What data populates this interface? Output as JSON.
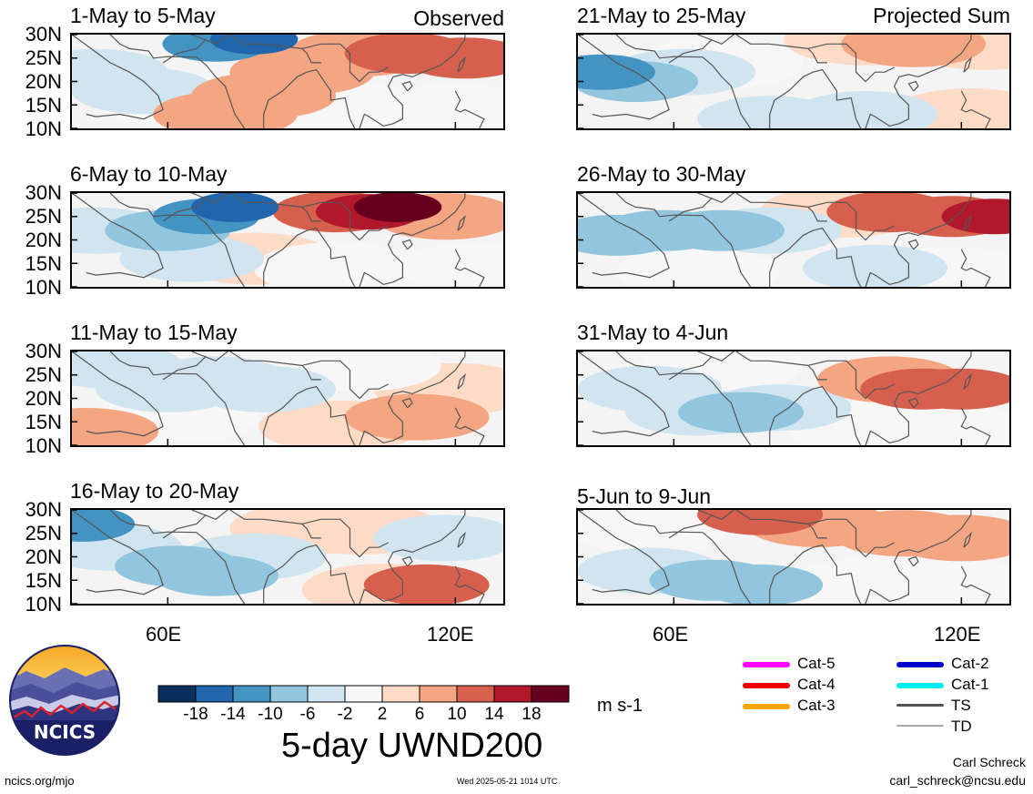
{
  "header": {
    "observed_label": "Observed",
    "projected_label": "Projected Sum"
  },
  "panels": [
    {
      "title": "1-May to 5-May",
      "period": "observed",
      "zones": [
        {
          "lon": 45,
          "lat": 22,
          "val": -6
        },
        {
          "lon": 55,
          "lat": 18,
          "val": -6
        },
        {
          "lon": 62,
          "lat": 16,
          "val": -2
        },
        {
          "lon": 70,
          "lat": 28,
          "val": -14
        },
        {
          "lon": 78,
          "lat": 29,
          "val": -18
        },
        {
          "lon": 72,
          "lat": 13,
          "val": 6
        },
        {
          "lon": 80,
          "lat": 17,
          "val": 6
        },
        {
          "lon": 88,
          "lat": 22,
          "val": 6
        },
        {
          "lon": 100,
          "lat": 26,
          "val": 6
        },
        {
          "lon": 110,
          "lat": 26,
          "val": 10
        },
        {
          "lon": 122,
          "lat": 25,
          "val": 10
        },
        {
          "lon": 100,
          "lat": 14,
          "val": -2
        },
        {
          "lon": 120,
          "lat": 14,
          "val": -2
        },
        {
          "lon": 92,
          "lat": 12,
          "val": -2
        }
      ]
    },
    {
      "title": "21-May to 25-May",
      "period": "projected",
      "zones": [
        {
          "lon": 45,
          "lat": 22,
          "val": -14
        },
        {
          "lon": 52,
          "lat": 20,
          "val": -10
        },
        {
          "lon": 62,
          "lat": 22,
          "val": -6
        },
        {
          "lon": 70,
          "lat": 24,
          "val": -2
        },
        {
          "lon": 80,
          "lat": 12,
          "val": -6
        },
        {
          "lon": 100,
          "lat": 13,
          "val": -6
        },
        {
          "lon": 110,
          "lat": 28,
          "val": 6
        },
        {
          "lon": 100,
          "lat": 29,
          "val": 2
        },
        {
          "lon": 125,
          "lat": 28,
          "val": 2
        },
        {
          "lon": 122,
          "lat": 13,
          "val": 2
        }
      ]
    },
    {
      "title": "6-May to 10-May",
      "period": "observed",
      "zones": [
        {
          "lon": 45,
          "lat": 22,
          "val": -6
        },
        {
          "lon": 60,
          "lat": 22,
          "val": -10
        },
        {
          "lon": 68,
          "lat": 25,
          "val": -14
        },
        {
          "lon": 74,
          "lat": 27,
          "val": -18
        },
        {
          "lon": 65,
          "lat": 16,
          "val": -6
        },
        {
          "lon": 78,
          "lat": 16,
          "val": 2
        },
        {
          "lon": 95,
          "lat": 26,
          "val": 10
        },
        {
          "lon": 102,
          "lat": 26,
          "val": 14
        },
        {
          "lon": 108,
          "lat": 27,
          "val": 18
        },
        {
          "lon": 118,
          "lat": 25,
          "val": 6
        },
        {
          "lon": 95,
          "lat": 14,
          "val": -2
        },
        {
          "lon": 125,
          "lat": 14,
          "val": -2
        }
      ]
    },
    {
      "title": "26-May to 30-May",
      "period": "projected",
      "zones": [
        {
          "lon": 48,
          "lat": 21,
          "val": -10
        },
        {
          "lon": 58,
          "lat": 22,
          "val": -10
        },
        {
          "lon": 70,
          "lat": 22,
          "val": -10
        },
        {
          "lon": 80,
          "lat": 22,
          "val": -6
        },
        {
          "lon": 65,
          "lat": 13,
          "val": -2
        },
        {
          "lon": 105,
          "lat": 26,
          "val": 10
        },
        {
          "lon": 118,
          "lat": 25,
          "val": 10
        },
        {
          "lon": 127,
          "lat": 25,
          "val": 14
        },
        {
          "lon": 95,
          "lat": 26,
          "val": 2
        },
        {
          "lon": 102,
          "lat": 14,
          "val": -6
        },
        {
          "lon": 118,
          "lat": 13,
          "val": -2
        }
      ]
    },
    {
      "title": "11-May to 15-May",
      "period": "observed",
      "zones": [
        {
          "lon": 48,
          "lat": 27,
          "val": -6
        },
        {
          "lon": 60,
          "lat": 22,
          "val": -6
        },
        {
          "lon": 70,
          "lat": 24,
          "val": -6
        },
        {
          "lon": 80,
          "lat": 22,
          "val": -6
        },
        {
          "lon": 62,
          "lat": 16,
          "val": -2
        },
        {
          "lon": 43,
          "lat": 13,
          "val": 6
        },
        {
          "lon": 96,
          "lat": 14,
          "val": 2
        },
        {
          "lon": 112,
          "lat": 16,
          "val": 6
        },
        {
          "lon": 120,
          "lat": 22,
          "val": 2
        },
        {
          "lon": 100,
          "lat": 27,
          "val": -2
        }
      ]
    },
    {
      "title": "31-May to 4-Jun",
      "period": "projected",
      "zones": [
        {
          "lon": 55,
          "lat": 22,
          "val": -6
        },
        {
          "lon": 65,
          "lat": 17,
          "val": -6
        },
        {
          "lon": 74,
          "lat": 17,
          "val": -10
        },
        {
          "lon": 82,
          "lat": 18,
          "val": -6
        },
        {
          "lon": 70,
          "lat": 27,
          "val": -2
        },
        {
          "lon": 112,
          "lat": 22,
          "val": 10
        },
        {
          "lon": 120,
          "lat": 22,
          "val": 10
        },
        {
          "lon": 105,
          "lat": 24,
          "val": 6
        },
        {
          "lon": 100,
          "lat": 14,
          "val": -2
        },
        {
          "lon": 118,
          "lat": 13,
          "val": -2
        }
      ]
    },
    {
      "title": "16-May to 20-May",
      "period": "observed",
      "zones": [
        {
          "lon": 42,
          "lat": 27,
          "val": -14
        },
        {
          "lon": 48,
          "lat": 22,
          "val": -6
        },
        {
          "lon": 62,
          "lat": 18,
          "val": -10
        },
        {
          "lon": 70,
          "lat": 16,
          "val": -10
        },
        {
          "lon": 78,
          "lat": 20,
          "val": -6
        },
        {
          "lon": 90,
          "lat": 26,
          "val": 2
        },
        {
          "lon": 100,
          "lat": 26,
          "val": 2
        },
        {
          "lon": 118,
          "lat": 24,
          "val": -6
        },
        {
          "lon": 114,
          "lat": 14,
          "val": 10
        },
        {
          "lon": 105,
          "lat": 13,
          "val": 2
        }
      ]
    },
    {
      "title": "5-Jun to 9-Jun",
      "period": "projected",
      "zones": [
        {
          "lon": 55,
          "lat": 26,
          "val": -2
        },
        {
          "lon": 78,
          "lat": 29,
          "val": 10
        },
        {
          "lon": 90,
          "lat": 27,
          "val": 6
        },
        {
          "lon": 108,
          "lat": 25,
          "val": 6
        },
        {
          "lon": 120,
          "lat": 24,
          "val": 6
        },
        {
          "lon": 68,
          "lat": 15,
          "val": -10
        },
        {
          "lon": 78,
          "lat": 14,
          "val": -10
        },
        {
          "lon": 55,
          "lat": 17,
          "val": -6
        },
        {
          "lon": 100,
          "lat": 14,
          "val": -2
        },
        {
          "lon": 120,
          "lat": 14,
          "val": -2
        }
      ]
    }
  ],
  "axes": {
    "lat_ticks": [
      "30N",
      "25N",
      "20N",
      "15N",
      "10N"
    ],
    "lon_ticks": [
      "60E",
      "120E"
    ],
    "lon_range": [
      40,
      130
    ],
    "lat_range": [
      10,
      30
    ]
  },
  "colorbar": {
    "labels": [
      "-18",
      "-14",
      "-10",
      "-6",
      "-2",
      "2",
      "6",
      "10",
      "14",
      "18"
    ],
    "colors": [
      "#0a2f5e",
      "#2166ac",
      "#4393c3",
      "#92c5de",
      "#d1e5f0",
      "#f7f7f7",
      "#fddbc7",
      "#f4a582",
      "#d6604d",
      "#b2182b",
      "#67001f"
    ],
    "units": "m s-1"
  },
  "main_title": "5-day UWND200",
  "legend": [
    {
      "label": "Cat-5",
      "color": "#ff00ff"
    },
    {
      "label": "Cat-4",
      "color": "#ee0000"
    },
    {
      "label": "Cat-3",
      "color": "#ffa500"
    },
    {
      "label": "Cat-2",
      "color": "#0000cc"
    },
    {
      "label": "Cat-1",
      "color": "#00eeee"
    },
    {
      "label": "TS",
      "color": "#555555"
    },
    {
      "label": "TD",
      "color": "#aaaaaa"
    }
  ],
  "logo": {
    "text": "NCICS"
  },
  "footer": {
    "site": "ncics.org/mjo",
    "timestamp": "Wed 2025-05-21 1014 UTC",
    "author": "Carl Schreck",
    "email": "carl_schreck@ncsu.edu"
  }
}
